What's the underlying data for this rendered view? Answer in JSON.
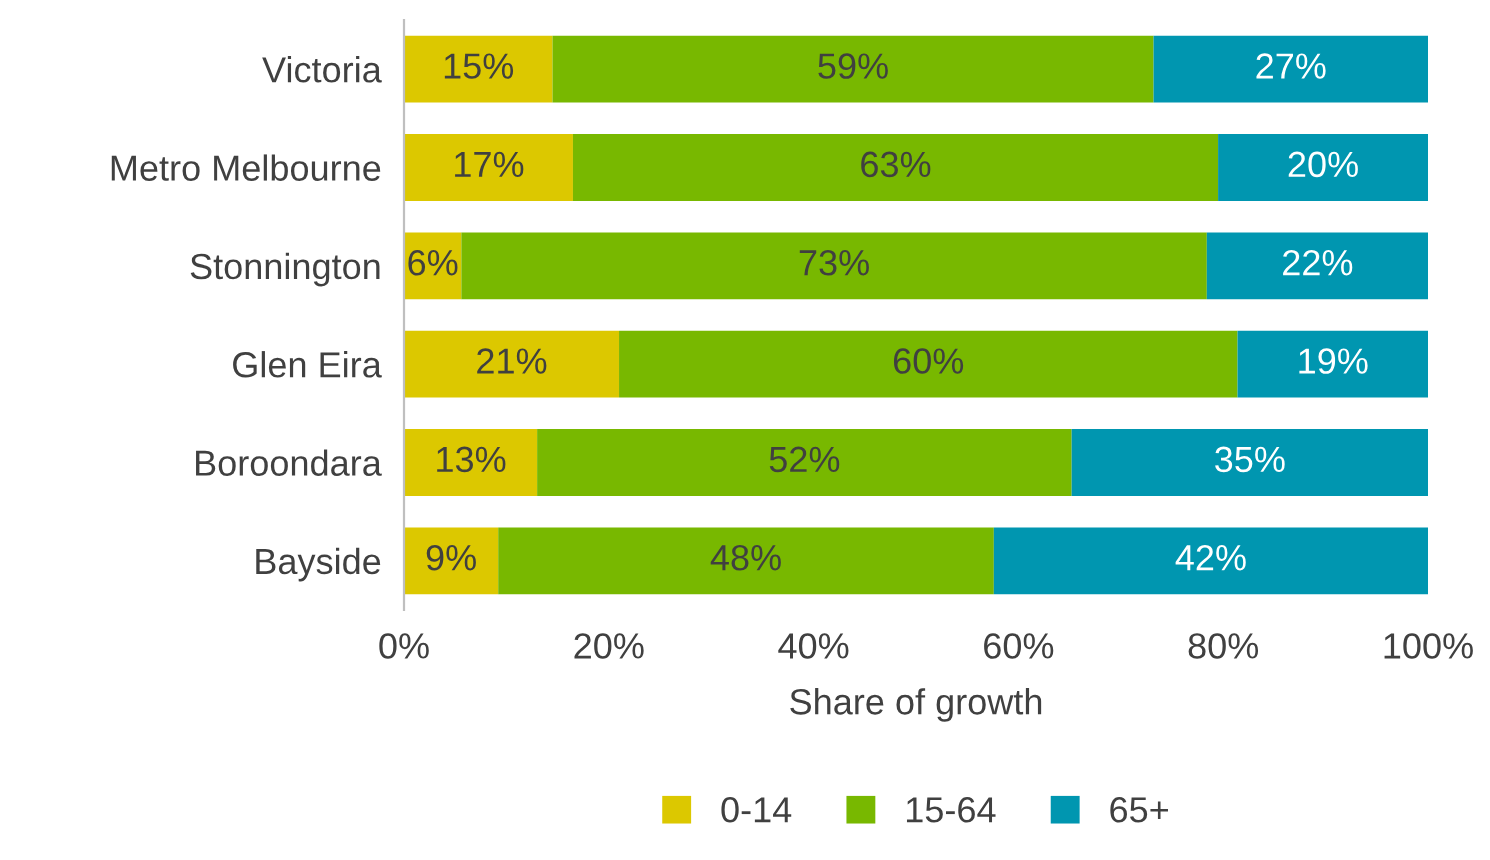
{
  "chart_data": {
    "type": "bar",
    "orientation": "horizontal",
    "stacked": true,
    "categories": [
      "Victoria",
      "Metro Melbourne",
      "Stonnington",
      "Glen Eira",
      "Boroondara",
      "Bayside"
    ],
    "series": [
      {
        "name": "0-14",
        "color": "#dcc800",
        "values": [
          14.5,
          16.5,
          5.6,
          21,
          13,
          9.2
        ],
        "value_labels": [
          "15%",
          "17%",
          "6%",
          "21%",
          "13%",
          "9%"
        ]
      },
      {
        "name": "15-64",
        "color": "#78b800",
        "values": [
          58.7,
          63,
          72.8,
          60.4,
          52.2,
          48.4
        ],
        "value_labels": [
          "59%",
          "63%",
          "73%",
          "60%",
          "52%",
          "48%"
        ]
      },
      {
        "name": "65+",
        "color": "#0096b0",
        "values": [
          26.8,
          20.5,
          21.6,
          18.6,
          34.8,
          42.4
        ],
        "value_labels": [
          "27%",
          "20%",
          "22%",
          "19%",
          "35%",
          "42%"
        ]
      }
    ],
    "xlim": [
      0,
      100
    ],
    "xticks": [
      {
        "value": 0,
        "label": "0%"
      },
      {
        "value": 20,
        "label": "20%"
      },
      {
        "value": 40,
        "label": "40%"
      },
      {
        "value": 60,
        "label": "60%"
      },
      {
        "value": 80,
        "label": "80%"
      },
      {
        "value": 100,
        "label": "100%"
      }
    ],
    "xlabel": "Share of growth",
    "legend": "bottom"
  }
}
